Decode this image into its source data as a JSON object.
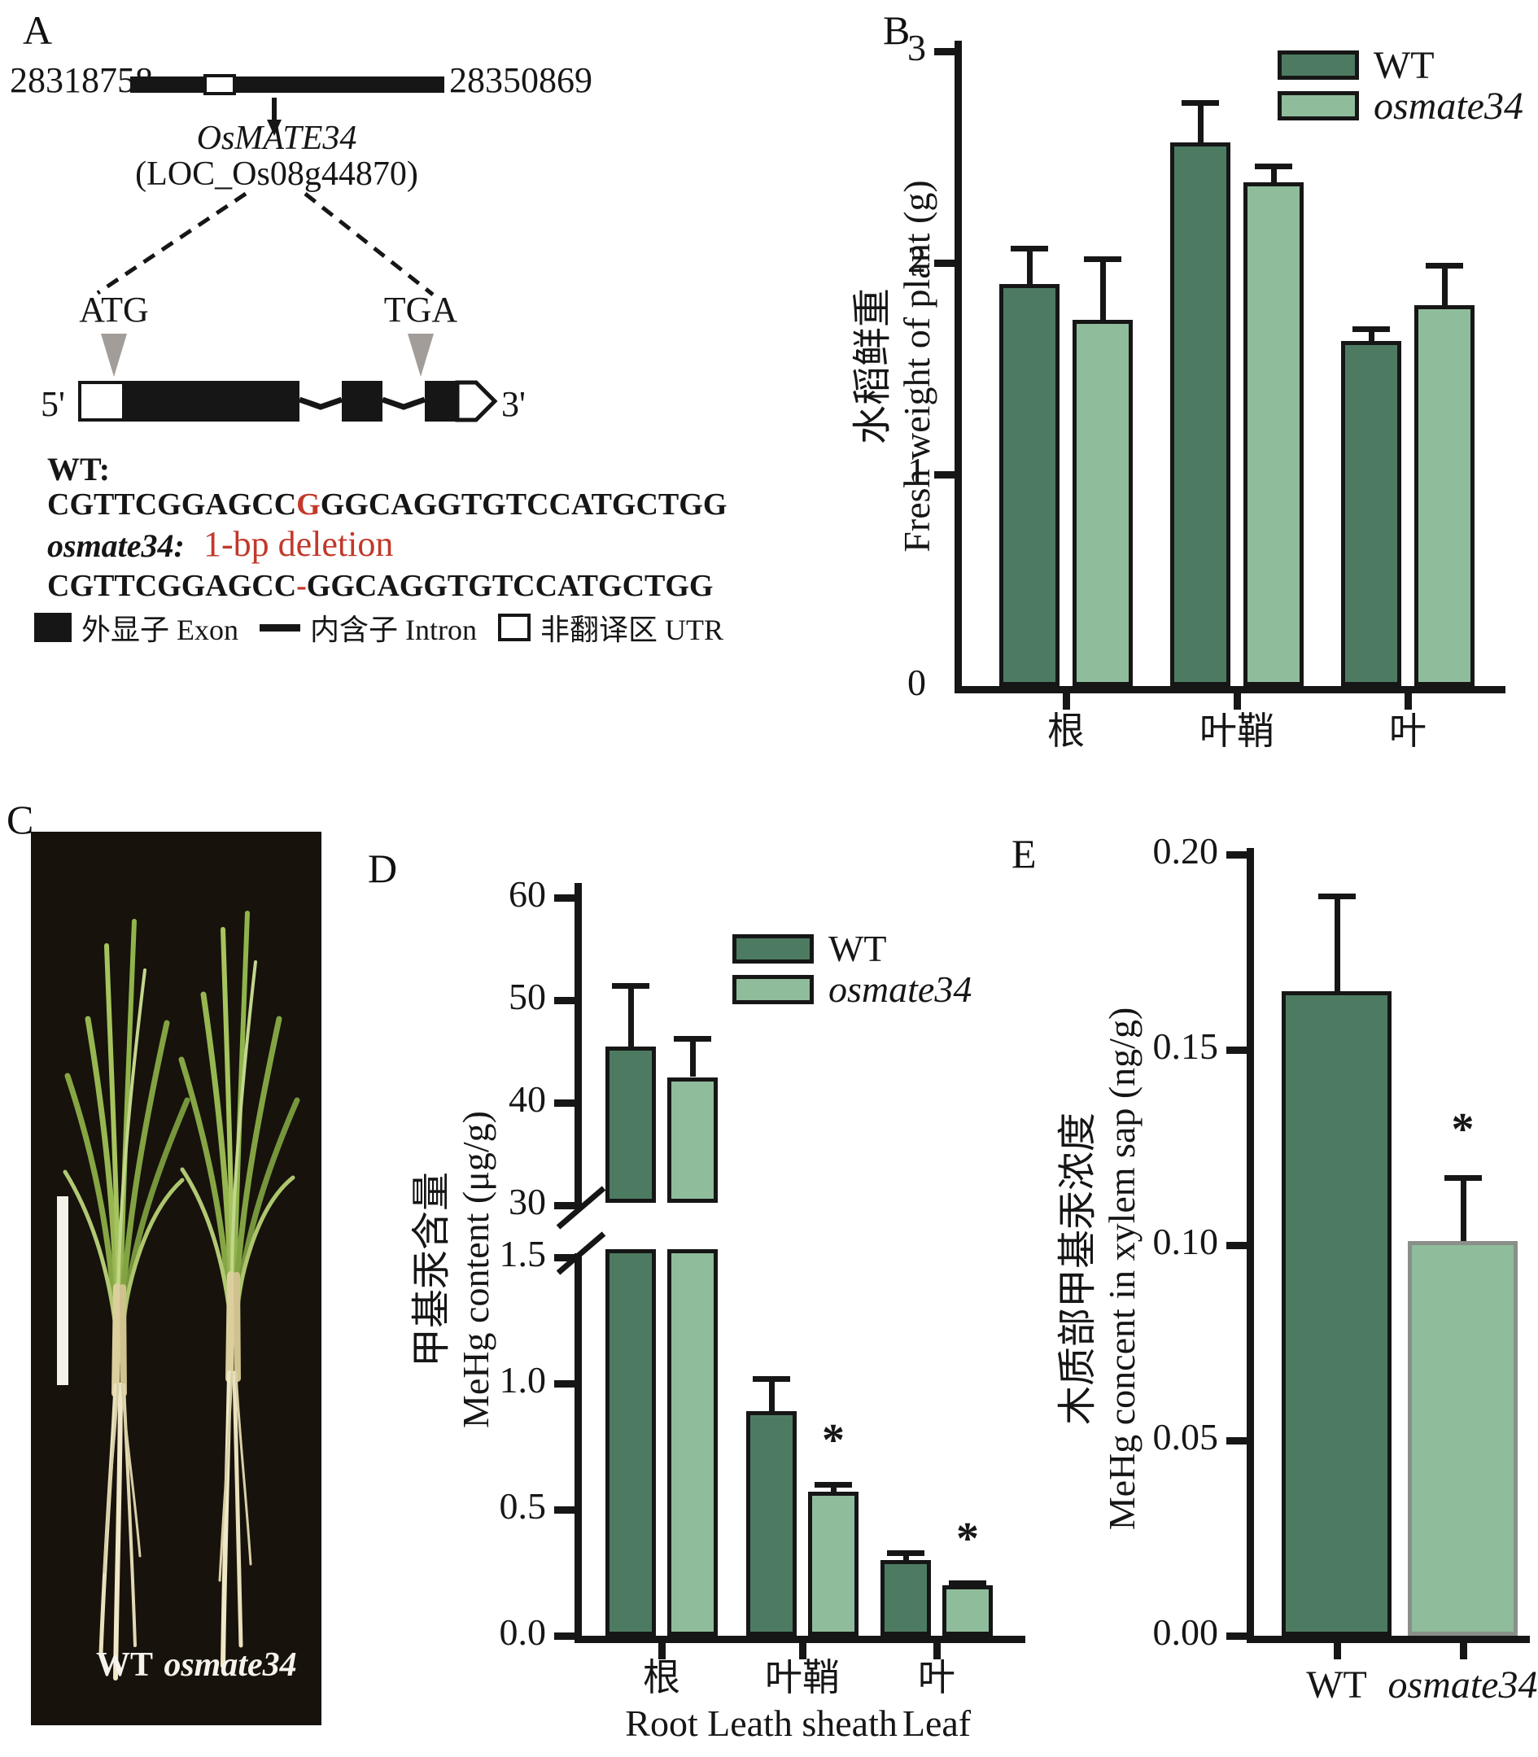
{
  "panels": {
    "a": {
      "label": "A",
      "chrom_start": "28318758",
      "chrom_end": "28350869",
      "gene_name": "OsMATE34",
      "locus": "(LOC_Os08g44870)",
      "start_codon": "ATG",
      "stop_codon": "TGA",
      "five_prime": "5'",
      "three_prime": "3'",
      "wt_label": "WT:",
      "wt_seq": {
        "pre": "CGTTCGGAGCC",
        "highlight": "G",
        "post": "GGCAGGTGTCCATGCTGG"
      },
      "mut_label": "osmate34:",
      "mut_note": "1-bp deletion",
      "mut_seq": {
        "pre": "CGTTCGGAGCC",
        "highlight": "-",
        "post": "GGCAGGTGTCCATGCTGG"
      },
      "legend": {
        "exon": "外显子 Exon",
        "intron": "内含子 Intron",
        "utr": "非翻译区 UTR"
      }
    },
    "b": {
      "label": "B"
    },
    "c": {
      "label": "C",
      "wt": "WT",
      "mutant": "osmate34"
    },
    "d": {
      "label": "D"
    },
    "e": {
      "label": "E"
    }
  },
  "colors": {
    "wt_bar": "#4d7b62",
    "mutant_bar": "#8fbc9b",
    "highlight_red": "#c1392b",
    "triangle_gray": "#a39d99",
    "axis_black": "#161616",
    "photo_background": "#17120b"
  },
  "chart_data": [
    {
      "id": "fresh-weight",
      "type": "bar",
      "ylabel_zh": "水稻鲜重",
      "ylabel_en": "Fresh weight of plant (g)",
      "categories_zh": [
        "根",
        "叶鞘",
        "叶"
      ],
      "yticks": [
        "0",
        "1",
        "2",
        "3"
      ],
      "ylim": [
        0,
        3
      ],
      "grid": false,
      "legend_position": "top-right",
      "series": [
        {
          "name": "WT",
          "values": [
            1.9,
            2.57,
            1.63
          ],
          "errors": [
            0.18,
            0.2,
            0.07
          ],
          "sig": [
            "",
            "",
            ""
          ]
        },
        {
          "name": "osmate34",
          "values": [
            1.73,
            2.38,
            1.8
          ],
          "errors": [
            0.3,
            0.09,
            0.2
          ],
          "sig": [
            "",
            "",
            ""
          ]
        }
      ]
    },
    {
      "id": "mehg-content",
      "type": "bar",
      "axis_break": true,
      "ylabel_zh": "甲基汞含量",
      "ylabel_en": "MeHg content (μg/g)",
      "categories_zh": [
        "根",
        "叶鞘",
        "叶"
      ],
      "categories_en": [
        "Root",
        "Leath sheath",
        "Leaf"
      ],
      "lower_axis": {
        "yticks": [
          "0.0",
          "0.5",
          "1.0",
          "1.5"
        ],
        "range": [
          0,
          1.5
        ]
      },
      "upper_axis": {
        "yticks": [
          "30",
          "40",
          "50",
          "60"
        ],
        "range": [
          30,
          60
        ]
      },
      "legend_position": "upper-middle",
      "series": [
        {
          "name": "WT",
          "values": [
            45.5,
            0.89,
            0.3
          ],
          "errors": [
            6.2,
            0.14,
            0.04
          ],
          "sig": [
            "",
            "",
            ""
          ]
        },
        {
          "name": "osmate34",
          "values": [
            42.5,
            0.57,
            0.2
          ],
          "errors": [
            4.0,
            0.04,
            0.02
          ],
          "sig": [
            "",
            "*",
            "*"
          ]
        }
      ]
    },
    {
      "id": "xylem-mehg",
      "type": "bar",
      "ylabel_zh": "木质部甲基汞浓度",
      "ylabel_en": "MeHg concent in xylem sap (ng/g)",
      "categories": [
        "WT",
        "osmate34"
      ],
      "values": [
        0.165,
        0.101
      ],
      "errors": [
        0.025,
        0.017
      ],
      "sig": [
        "",
        "*"
      ],
      "yticks": [
        "0.00",
        "0.05",
        "0.10",
        "0.15",
        "0.20"
      ],
      "ylim": [
        0,
        0.2
      ]
    }
  ]
}
